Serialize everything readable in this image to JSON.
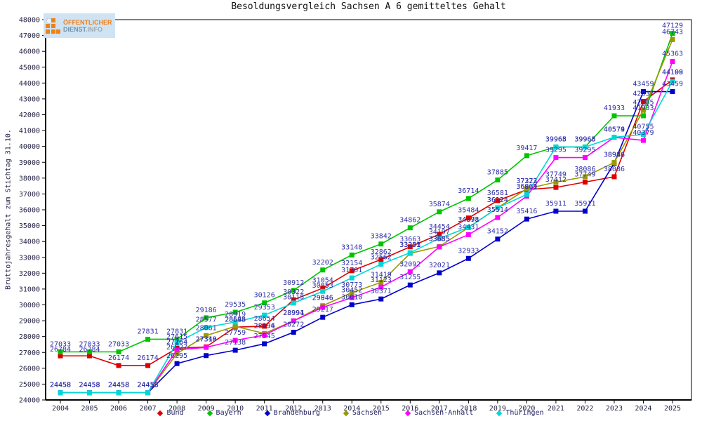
{
  "logo": {
    "line1": "ÖFFENTLICHER",
    "line2_main": "DIENST",
    "line2_suffix": ".INFO"
  },
  "chart_data": {
    "type": "line",
    "title": "Besoldungsvergleich Sachsen A 6 gemitteltes Gehalt",
    "ylabel": "Bruttojahresgehalt zum Stichtag 31.10.",
    "xlabel": "",
    "grid": false,
    "legend_position": "bottom",
    "ylim": [
      24000,
      48000
    ],
    "ytick_step": 1000,
    "years": [
      2004,
      2005,
      2006,
      2007,
      2008,
      2009,
      2010,
      2011,
      2012,
      2013,
      2014,
      2015,
      2016,
      2017,
      2018,
      2019,
      2020,
      2021,
      2022,
      2023,
      2024,
      2025
    ],
    "label_color": "#3030aa",
    "axis_color": "#222244",
    "series": [
      {
        "name": "Bund",
        "color": "#dd0000",
        "values": [
          26784,
          26784,
          26174,
          26174,
          27264,
          27349,
          28598,
          28654,
          30322,
          31054,
          32154,
          32862,
          33663,
          34454,
          35484,
          36581,
          37273,
          37412,
          37749,
          38086,
          42837,
          44199
        ],
        "hidden_label_years": []
      },
      {
        "name": "Bayern",
        "color": "#00c400",
        "values": [
          27033,
          27033,
          27033,
          27831,
          27831,
          29186,
          29535,
          30126,
          30912,
          32202,
          33148,
          33842,
          34862,
          35874,
          36714,
          37885,
          39417,
          39968,
          39968,
          41933,
          41933,
          47129
        ],
        "hidden_label_years": []
      },
      {
        "name": "Brandenburg",
        "color": "#0000cc",
        "values": [
          24458,
          24458,
          24458,
          24458,
          26295,
          26800,
          27138,
          27545,
          28272,
          29217,
          30010,
          30371,
          31255,
          32021,
          32933,
          34152,
          35416,
          35911,
          35911,
          38946,
          43459,
          43459
        ],
        "hidden_label_years": [
          2009
        ]
      },
      {
        "name": "Sachsen",
        "color": "#999900",
        "values": [
          24458,
          24458,
          24458,
          24458,
          26927,
          28061,
          28645,
          28194,
          28994,
          29946,
          30773,
          31419,
          33253,
          33685,
          34878,
          36124,
          37322,
          37749,
          38086,
          38986,
          42285,
          46743
        ],
        "hidden_label_years": []
      },
      {
        "name": "Sachsen-Anhalt",
        "color": "#ff00ff",
        "values": [
          24458,
          24458,
          24458,
          24458,
          27164,
          27318,
          27759,
          28096,
          28991,
          29846,
          30452,
          31123,
          32092,
          33655,
          34431,
          35514,
          36861,
          39295,
          39295,
          40574,
          40379,
          45363
        ],
        "hidden_label_years": []
      },
      {
        "name": "Thüringen",
        "color": "#00d8d8",
        "values": [
          24458,
          24458,
          24458,
          24458,
          27615,
          28577,
          28919,
          29353,
          30115,
          30853,
          31701,
          32562,
          33291,
          34197,
          34891,
          36124,
          36969,
          39965,
          39965,
          40579,
          40755,
          44108
        ],
        "hidden_label_years": []
      }
    ]
  }
}
